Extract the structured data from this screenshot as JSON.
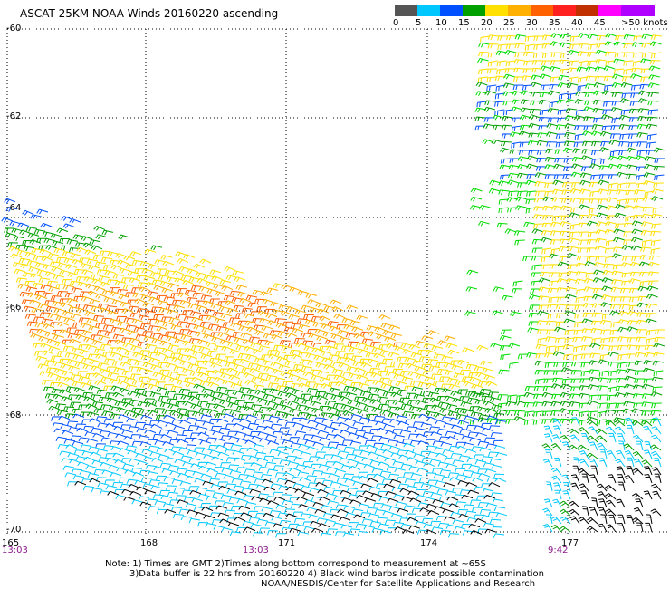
{
  "title": "ASCAT 25KM NOAA Winds 20160220 ascending",
  "legend": {
    "colors": [
      "#555555",
      "#888888",
      "#00c8ff",
      "#0050ff",
      "#00a000",
      "#00dd00",
      "#ffe000",
      "#ffb000",
      "#ff6000",
      "#ff2020",
      "#c03000",
      "#8b4513",
      "#ff00ff",
      "#b000ff",
      "#6000a0"
    ],
    "labels": [
      "0",
      "5",
      "10",
      "15",
      "20",
      "25",
      "30",
      "35",
      "40",
      "45",
      ">50 knots"
    ]
  },
  "lat_labels": [
    "-60",
    "-62",
    "-64",
    "-66",
    "-68",
    "-70"
  ],
  "lon_labels": [
    "165",
    "168",
    "171",
    "174",
    "177"
  ],
  "times": [
    "13:03",
    "13:03",
    "9:42"
  ],
  "notes": [
    "Note: 1) Times are GMT 2)Times along bottom correspond to measurement at ~65S",
    "3)Data buffer is 22 hrs from 20160220 4) Black wind barbs indicate possible contamination",
    "NOAA/NESDIS/Center for Satellite Applications and Research"
  ]
}
